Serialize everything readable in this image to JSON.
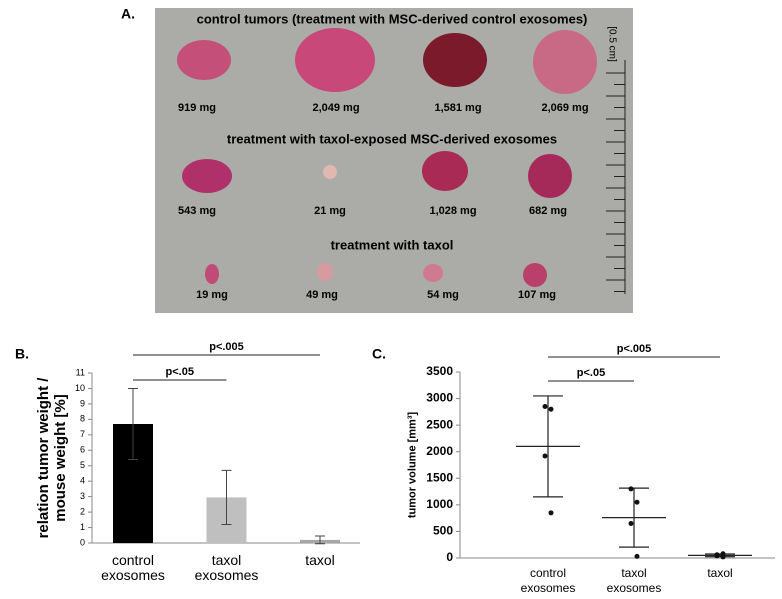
{
  "panel_a": {
    "label": "A.",
    "scale": "[0.5 cm]",
    "groups": [
      {
        "title": "control tumors (treatment with MSC-derived control exosomes)",
        "weights": [
          "919 mg",
          "2,049 mg",
          "1,581 mg",
          "2,069 mg"
        ]
      },
      {
        "title": "treatment with taxol-exposed MSC-derived exosomes",
        "weights": [
          "543 mg",
          "21 mg",
          "1,028 mg",
          "682 mg"
        ]
      },
      {
        "title": "treatment with taxol",
        "weights": [
          "19 mg",
          "49 mg",
          "54 mg",
          "107 mg"
        ]
      }
    ]
  },
  "chart_data": [
    {
      "type": "bar",
      "panel_label": "B.",
      "y_label": "relation tumor weight / mouse weight [%]",
      "categories": [
        "control exosomes",
        "taxol exosomes",
        "taxol"
      ],
      "values": [
        7.7,
        2.95,
        0.2
      ],
      "errors": [
        2.3,
        1.75,
        0.25
      ],
      "colors": [
        "#000000",
        "#bfbfbf",
        "#a6a6a6"
      ],
      "ylim": [
        0,
        11
      ],
      "yticks": [
        0,
        1,
        2,
        3,
        4,
        5,
        6,
        7,
        8,
        9,
        10,
        11
      ],
      "annotations": [
        "p<.005",
        "p<.05"
      ]
    },
    {
      "type": "dot",
      "panel_label": "C.",
      "y_label": "tumor volume [mm³]",
      "categories": [
        "control exosomes",
        "taxol exosomes",
        "taxol"
      ],
      "points": [
        [
          2850,
          2800,
          1920,
          850
        ],
        [
          1300,
          1050,
          650,
          30
        ],
        [
          60,
          80,
          40,
          20
        ]
      ],
      "values": [
        2100,
        760,
        50
      ],
      "errors": [
        950,
        555,
        25
      ],
      "ylim": [
        0,
        3500
      ],
      "yticks": [
        0,
        500,
        1000,
        1500,
        2000,
        2500,
        3000,
        3500
      ],
      "annotations": [
        "p<.005",
        "p<.05"
      ]
    }
  ]
}
